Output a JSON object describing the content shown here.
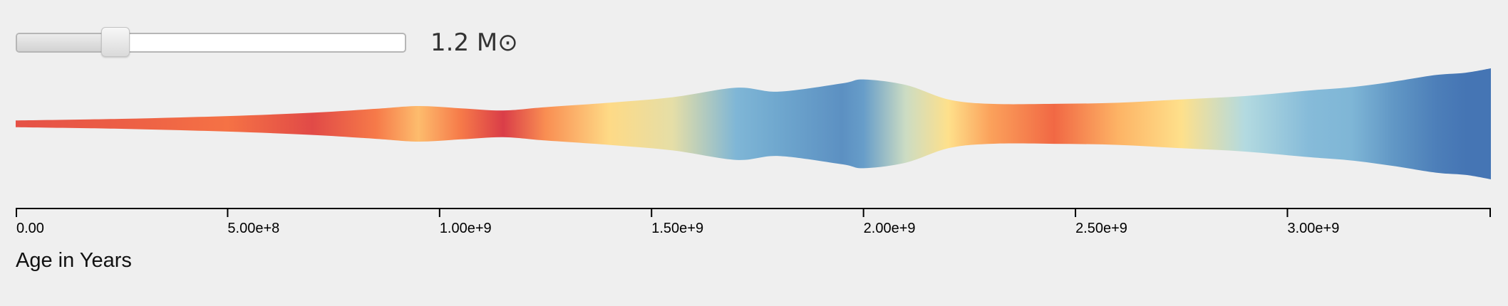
{
  "slider": {
    "value": 1.2,
    "min": 0.8,
    "max": 2.5,
    "label": "1.2 M⊙"
  },
  "chart_data": {
    "type": "area",
    "xlabel": "Age in Years",
    "xlim": [
      0,
      3480000000
    ],
    "x_ticks": [
      0,
      500000000,
      1000000000,
      1500000000,
      2000000000,
      2500000000,
      3000000000
    ],
    "x_tick_labels": [
      "0.00",
      "5.00e+8",
      "1.00e+9",
      "1.50e+9",
      "2.00e+9",
      "2.50e+9",
      "3.00e+9"
    ],
    "grid": false,
    "legend": "none",
    "color_scale": [
      "#d73749",
      "#f46d43",
      "#fdae61",
      "#fee08b",
      "#abd9e9",
      "#74add1",
      "#4575b4"
    ],
    "series": [
      {
        "x": [
          0,
          250000000,
          500000000,
          700000000,
          850000000,
          950000000,
          1050000000,
          1150000000,
          1250000000,
          1400000000,
          1550000000,
          1700000000,
          1800000000,
          1950000000,
          2000000000,
          2100000000,
          2200000000,
          2300000000,
          2450000000,
          2600000000,
          2750000000,
          2900000000,
          3050000000,
          3150000000,
          3250000000,
          3350000000,
          3420000000,
          3480000000
        ],
        "width": [
          0.06,
          0.09,
          0.14,
          0.2,
          0.27,
          0.32,
          0.28,
          0.24,
          0.3,
          0.38,
          0.48,
          0.65,
          0.58,
          0.73,
          0.8,
          0.7,
          0.44,
          0.36,
          0.36,
          0.38,
          0.44,
          0.5,
          0.6,
          0.66,
          0.76,
          0.88,
          0.92,
          1.0
        ],
        "color_value": [
          0.08,
          0.12,
          0.18,
          0.06,
          0.2,
          0.38,
          0.2,
          0.02,
          0.25,
          0.48,
          0.55,
          0.8,
          0.85,
          0.92,
          0.88,
          0.6,
          0.5,
          0.3,
          0.15,
          0.35,
          0.5,
          0.65,
          0.78,
          0.8,
          0.9,
          0.97,
          1.0,
          1.0
        ]
      }
    ]
  }
}
